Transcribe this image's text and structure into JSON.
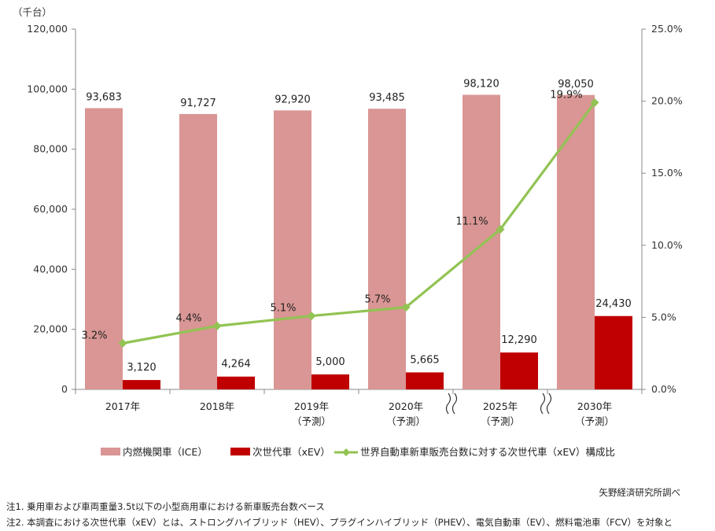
{
  "chart_data": {
    "type": "bar",
    "unit_label": "（千台）",
    "categories": [
      {
        "year": "2017年",
        "note": ""
      },
      {
        "year": "2018年",
        "note": ""
      },
      {
        "year": "2019年",
        "note": "（予測）"
      },
      {
        "year": "2020年",
        "note": "（予測）"
      },
      {
        "year": "2025年",
        "note": "（予測）"
      },
      {
        "year": "2030年",
        "note": "（予測）"
      }
    ],
    "series": [
      {
        "name": "内燃機関車（ICE）",
        "type": "bar",
        "color": "#d99694",
        "values": [
          93683,
          91727,
          92920,
          93485,
          98120,
          98050
        ],
        "labels": [
          "93,683",
          "91,727",
          "92,920",
          "93,485",
          "98,120",
          "98,050"
        ]
      },
      {
        "name": "次世代車（xEV）",
        "type": "bar",
        "color": "#c00000",
        "values": [
          3120,
          4264,
          5000,
          5665,
          12290,
          24430
        ],
        "labels": [
          "3,120",
          "4,264",
          "5,000",
          "5,665",
          "12,290",
          "24,430"
        ]
      },
      {
        "name": "世界自動車新車販売台数に対する次世代車（xEV）構成比",
        "type": "line",
        "color": "#92c353",
        "axis": "right",
        "values": [
          3.2,
          4.4,
          5.1,
          5.7,
          11.1,
          19.9
        ],
        "labels": [
          "3.2%",
          "4.4%",
          "5.1%",
          "5.7%",
          "11.1%",
          "19.9%"
        ]
      }
    ],
    "y_left": {
      "min": 0,
      "max": 120000,
      "ticks": [
        0,
        20000,
        40000,
        60000,
        80000,
        100000,
        120000
      ],
      "tick_labels": [
        "0",
        "20,000",
        "40,000",
        "60,000",
        "80,000",
        "100,000",
        "120,000"
      ]
    },
    "y_right": {
      "min": 0,
      "max": 25,
      "ticks": [
        0,
        5,
        10,
        15,
        20,
        25
      ],
      "tick_labels": [
        "0.0%",
        "5.0%",
        "10.0%",
        "15.0%",
        "20.0%",
        "25.0%"
      ]
    },
    "axis_break_between": [
      [
        3,
        4
      ],
      [
        4,
        5
      ]
    ],
    "grid": false,
    "legend_position": "bottom"
  },
  "credit": "矢野経済研究所調べ",
  "notes": [
    "注1. 乗用車および車両重量3.5t以下の小型商用車における新車販売台数ベース",
    "注2. 本調査における次世代車（xEV）とは、ストロングハイブリッド（HEV）、プラグインハイブリッド（PHEV）、電気自動車（EV）、燃料電池車（FCV）を対象と"
  ]
}
